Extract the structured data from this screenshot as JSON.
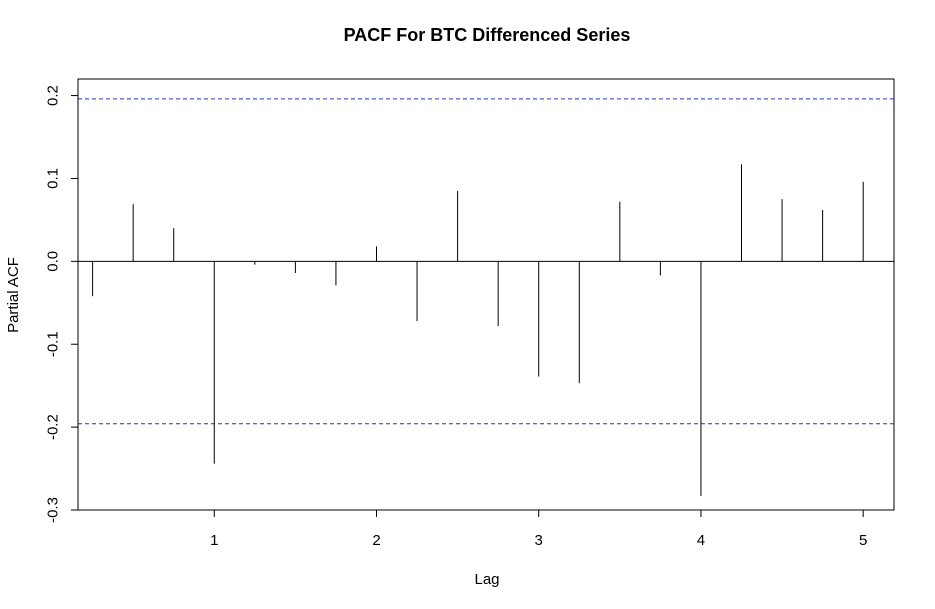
{
  "chart_data": {
    "type": "bar",
    "title": "PACF For BTC Differenced Series",
    "xlabel": "Lag",
    "ylabel": "Partial ACF",
    "xlim": [
      0.16,
      5.19
    ],
    "ylim": [
      -0.3,
      0.22
    ],
    "x_ticks": [
      1,
      2,
      3,
      4,
      5
    ],
    "x_tick_labels": [
      "1",
      "2",
      "3",
      "4",
      "5"
    ],
    "y_ticks": [
      -0.3,
      -0.2,
      -0.1,
      0.0,
      0.1,
      0.2
    ],
    "y_tick_labels": [
      "-0.3",
      "-0.2",
      "-0.1",
      "0.0",
      "0.1",
      "0.2"
    ],
    "confidence_bound": 0.196,
    "bound_color": "#2233bb",
    "spike_color": "#000000",
    "x": [
      0.25,
      0.5,
      0.75,
      1.0,
      1.25,
      1.5,
      1.75,
      2.0,
      2.25,
      2.5,
      2.75,
      3.0,
      3.25,
      3.5,
      3.75,
      4.0,
      4.25,
      4.5,
      4.75,
      5.0
    ],
    "values": [
      -0.042,
      0.069,
      0.04,
      -0.244,
      -0.004,
      -0.014,
      -0.029,
      0.018,
      -0.072,
      0.085,
      -0.078,
      -0.139,
      -0.147,
      0.072,
      -0.017,
      -0.283,
      0.117,
      0.075,
      0.062,
      0.096
    ],
    "grid": false,
    "legend": "none"
  }
}
